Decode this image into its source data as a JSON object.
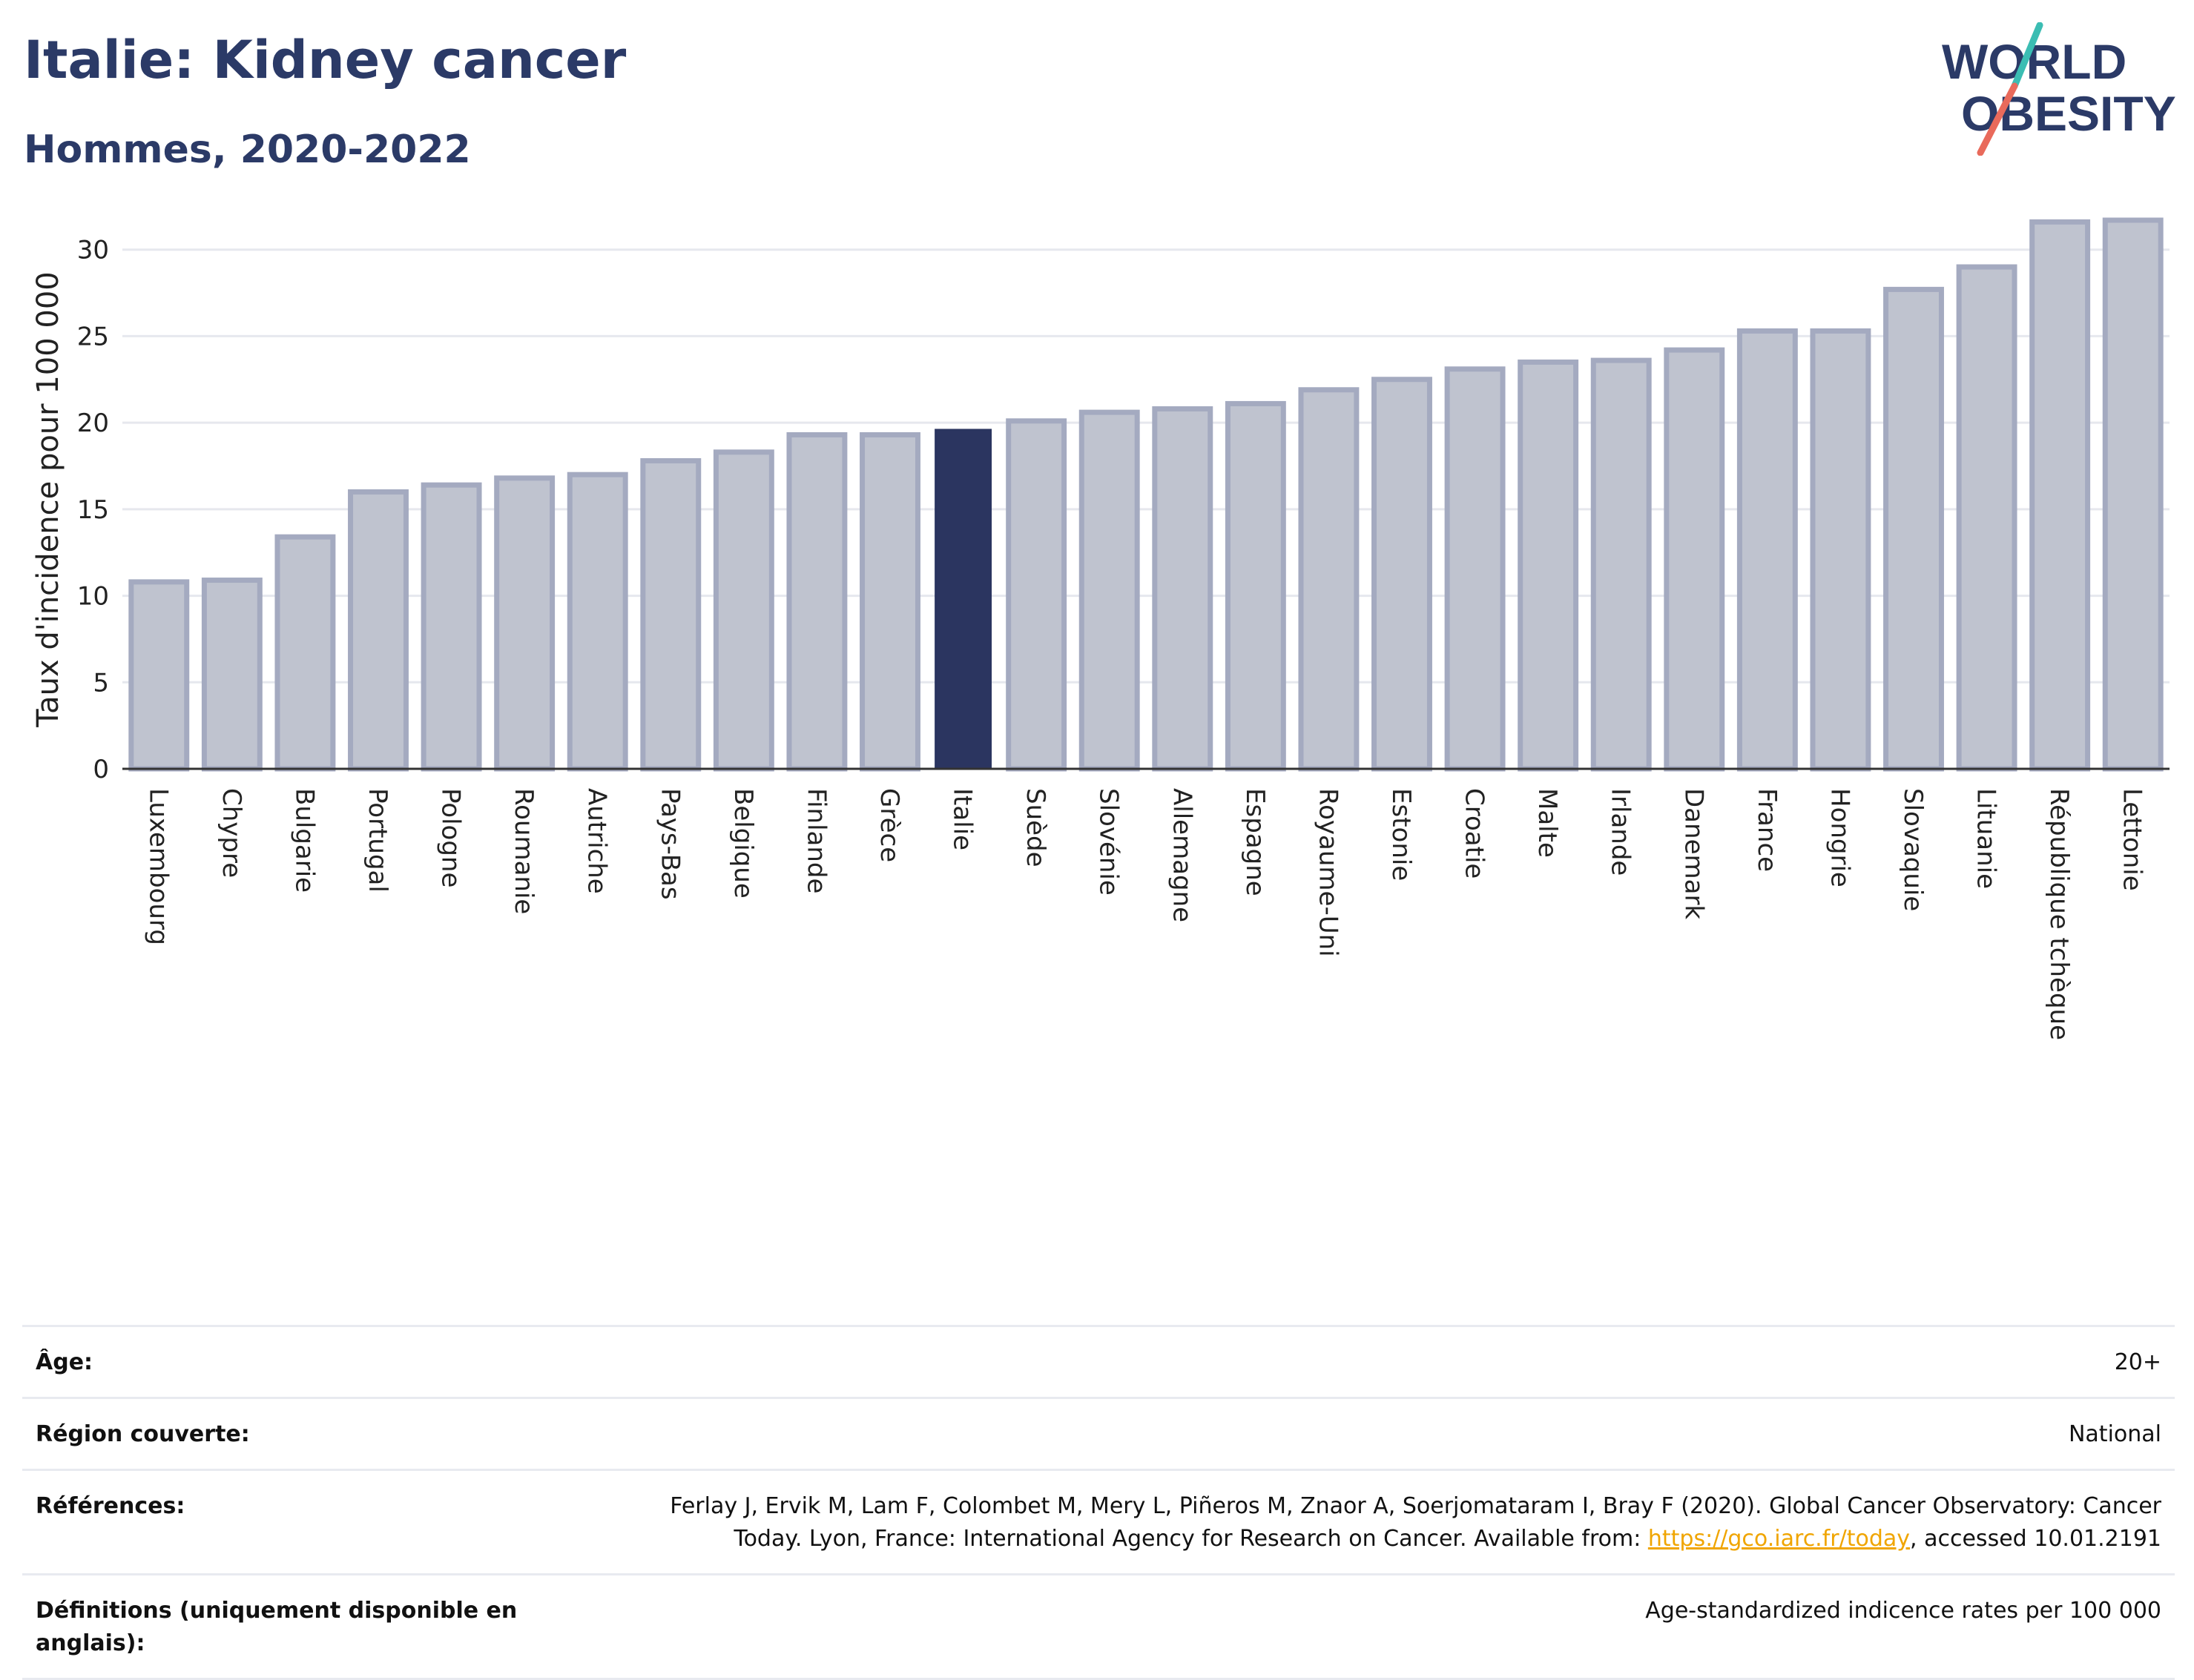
{
  "header": {
    "title": "Italie: Kidney cancer",
    "subtitle": "Hommes, 2020-2022"
  },
  "logo": {
    "text": "WORLD OBESITY",
    "line1": "WORLD",
    "line2": "OBESITY",
    "colors": [
      "#2b3a67",
      "#3bbdb3",
      "#e96a5b"
    ]
  },
  "chart_data": {
    "type": "bar",
    "title": "Italie: Kidney cancer",
    "subtitle": "Hommes, 2020-2022",
    "ylabel": "Taux d'incidence pour 100 000",
    "xlabel": "",
    "ylim": [
      0,
      32
    ],
    "yticks": [
      0,
      5,
      10,
      15,
      20,
      25,
      30
    ],
    "grid": true,
    "highlight": "Italie",
    "colors": {
      "bar": "#bfc3cf",
      "bar_border": "#a4aac0",
      "highlight": "#2b3560",
      "grid": "#e6e8ee",
      "axis": "#333333"
    },
    "categories": [
      "Luxembourg",
      "Chypre",
      "Bulgarie",
      "Portugal",
      "Pologne",
      "Roumanie",
      "Autriche",
      "Pays-Bas",
      "Belgique",
      "Finlande",
      "Grèce",
      "Italie",
      "Suède",
      "Slovénie",
      "Allemagne",
      "Espagne",
      "Royaume-Uni",
      "Estonie",
      "Croatie",
      "Malte",
      "Irlande",
      "Danemark",
      "France",
      "Hongrie",
      "Slovaquie",
      "Lituanie",
      "République tchèque",
      "Lettonie"
    ],
    "values": [
      10.8,
      10.9,
      13.4,
      16.0,
      16.4,
      16.8,
      17.0,
      17.8,
      18.3,
      19.3,
      19.3,
      19.6,
      20.1,
      20.6,
      20.8,
      21.1,
      21.9,
      22.5,
      23.1,
      23.5,
      23.6,
      24.2,
      25.3,
      25.3,
      27.7,
      29.0,
      31.6,
      31.7
    ]
  },
  "info": {
    "rows": [
      {
        "label": "Âge:",
        "value": "20+"
      },
      {
        "label": "Région couverte:",
        "value": "National"
      },
      {
        "label": "Références:",
        "value_before": "Ferlay J, Ervik M, Lam F, Colombet M, Mery L, Piñeros M, Znaor A, Soerjomataram I, Bray F (2020). Global Cancer Observatory: Cancer Today. Lyon, France: International Agency for Research on Cancer. Available from: ",
        "link": "https://gco.iarc.fr/today",
        "value_after": ", accessed 10.01.2191"
      },
      {
        "label": "Définitions (uniquement disponible en anglais):",
        "value": "Age-standardized indicence rates per 100 000"
      }
    ]
  }
}
